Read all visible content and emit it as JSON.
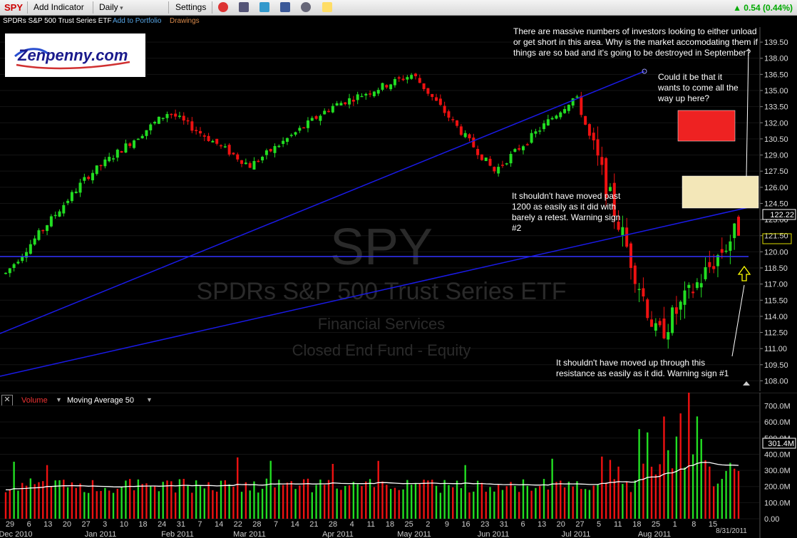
{
  "toolbar": {
    "ticker": "SPY",
    "add_indicator": "Add Indicator",
    "period": "Daily",
    "settings": "Settings",
    "price_change": "0.54 (0.44%)",
    "icons": [
      "alarm-clock-icon",
      "book-icon",
      "twitter-icon",
      "facebook-icon",
      "binoculars-icon",
      "note-icon"
    ]
  },
  "subbar": {
    "name": "SPDRs S&P 500 Trust Series ETF",
    "add_to_portfolio": "Add to Portfolio",
    "drawings": "Drawings"
  },
  "logo": {
    "text": "Zenpenny.com"
  },
  "watermark": {
    "ticker": "SPY",
    "name": "SPDRs S&P 500 Trust Series ETF",
    "sector": "Financial Services",
    "type": "Closed End Fund - Equity"
  },
  "annotations": {
    "top": "There are massive numbers of investors looking to either unload or get short in this area. Why is the market accomodating them if things are so bad and it's going to be destroyed in September?",
    "right": "Could it be that it wants to come all the way up here?",
    "middle": "It shouldn't have moved past 1200 as easily as it did with barely a retest. Warning sign #2",
    "bottom": "It shouldn't have moved up through this resistance as easily as it did. Warning sign #1"
  },
  "volume_header": {
    "volume_label": "Volume",
    "ma_label": "Moving Average 50",
    "close_icon": "x-close-icon"
  },
  "chart_data": [
    {
      "type": "candlestick",
      "title": "SPY",
      "y_ticks": [
        "139.50",
        "138.00",
        "136.50",
        "135.00",
        "133.50",
        "132.00",
        "130.50",
        "129.00",
        "127.50",
        "126.00",
        "124.50",
        "123.00",
        "121.50",
        "120.00",
        "118.50",
        "117.00",
        "115.50",
        "114.00",
        "112.50",
        "111.00",
        "109.50",
        "108.00"
      ],
      "ylim": [
        107.3,
        140.5
      ],
      "last_price": "122.22",
      "boxed_price": "120.00",
      "horizontal_line": 118.4,
      "series": [
        {
          "name": "",
          "description_points": [
            [
              "Dec 2010",
              118.0
            ],
            [
              "Jan 2011",
              127.0
            ],
            [
              "Feb 2011",
              133.0
            ],
            [
              "Mar 2011",
              128.0
            ],
            [
              "Apr 2011",
              133.5
            ],
            [
              "May 2011",
              136.5
            ],
            [
              "Jun 2011",
              127.5
            ],
            [
              "Jul 2011",
              134.5
            ],
            [
              "Aug 2011",
              112.0
            ],
            [
              "8/31/2011",
              122.2
            ]
          ]
        }
      ]
    },
    {
      "type": "bar",
      "title": "Volume",
      "y_ticks": [
        "700.0M",
        "600.0M",
        "500.0M",
        "400.0M",
        "300.0M",
        "200.0M",
        "100.0M",
        "0.00"
      ],
      "ylim": [
        0,
        720
      ],
      "last_volume": "301.4M",
      "moving_average_label": "Moving Average 50"
    }
  ],
  "x_axis": {
    "day_labels": [
      "29",
      "6",
      "13",
      "20",
      "27",
      "3",
      "10",
      "18",
      "24",
      "31",
      "7",
      "14",
      "22",
      "28",
      "7",
      "14",
      "21",
      "28",
      "4",
      "11",
      "18",
      "25",
      "2",
      "9",
      "16",
      "23",
      "31",
      "6",
      "13",
      "20",
      "27",
      "5",
      "11",
      "18",
      "25",
      "1",
      "8",
      "15"
    ],
    "month_labels": [
      "Dec 2010",
      "Jan 2011",
      "Feb 2011",
      "Mar 2011",
      "Apr 2011",
      "May 2011",
      "Jun 2011",
      "Jul 2011",
      "Aug 2011"
    ],
    "end_date": "8/31/2011"
  },
  "colors": {
    "up": "#22dd22",
    "down": "#ee1111",
    "trend": "#1a1ae6",
    "accent": "#cc0000"
  }
}
